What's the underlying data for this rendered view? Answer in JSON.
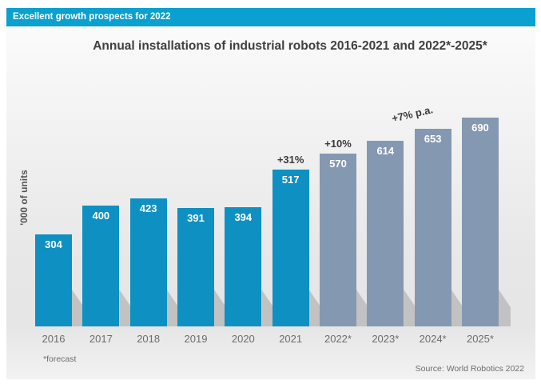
{
  "header": {
    "banner": "Excellent growth prospects for 2022"
  },
  "chart_data": {
    "type": "bar",
    "title": "Annual installations of industrial robots 2016-2021 and 2022*-2025*",
    "xlabel": "",
    "ylabel": "'000 of units",
    "categories": [
      "2016",
      "2017",
      "2018",
      "2019",
      "2020",
      "2021",
      "2022*",
      "2023*",
      "2024*",
      "2025*"
    ],
    "values": [
      304,
      400,
      423,
      391,
      394,
      517,
      570,
      614,
      653,
      690
    ],
    "forecast_categories_marker": "*",
    "annotations": [
      {
        "text": "+31%",
        "bar_index": 5,
        "rotate": 0
      },
      {
        "text": "+10%",
        "bar_index": 6,
        "rotate": 0
      },
      {
        "text": "+7% p.a.",
        "bar_index": 8,
        "rotate": -13
      }
    ],
    "colors": {
      "actual_bar": "#0e90c2",
      "forecast_bar": "#8598b1",
      "banner_bg": "#0aa0cf",
      "value_label": "#ffffff",
      "annotation_text": "#3b3b3b"
    },
    "ylim": [
      0,
      720
    ],
    "grid": false,
    "legend": "none"
  },
  "footer": {
    "footnote": "*forecast",
    "source": "Source: World Robotics 2022"
  }
}
